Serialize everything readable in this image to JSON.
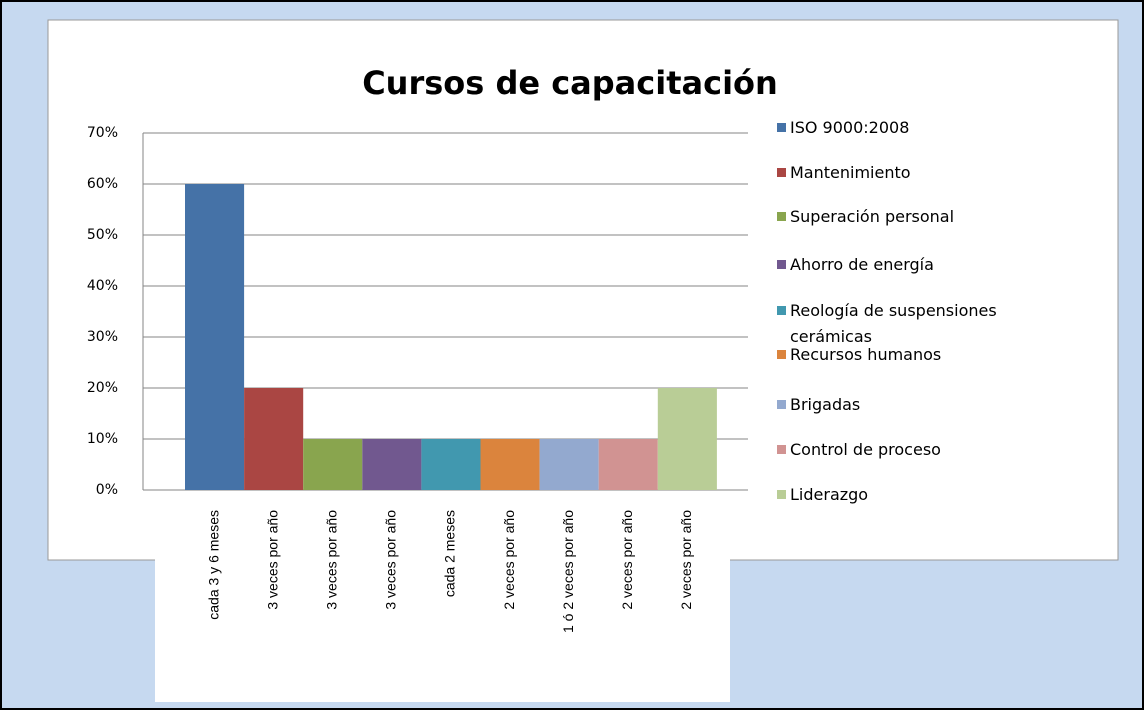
{
  "chart_data": {
    "type": "bar",
    "title": "Cursos de capacitación",
    "categories": [
      "cada 3 y 6 meses",
      "3 veces por año",
      "3 veces por año",
      "3 veces por año",
      "cada 2 meses",
      "2 veces por año",
      "1 ó 2 veces por año",
      "2 veces por año",
      "2 veces por año"
    ],
    "values": [
      60,
      20,
      10,
      10,
      10,
      10,
      10,
      10,
      20
    ],
    "colors": [
      "#4572a7",
      "#aa4643",
      "#89a54e",
      "#71588f",
      "#4198af",
      "#db843d",
      "#93a9cf",
      "#d19392",
      "#b9cd96"
    ],
    "legend": [
      "ISO 9000:2008",
      "Mantenimiento",
      "Superación personal",
      "Ahorro de energía",
      "Reología de suspensiones cerámicas",
      "Recursos humanos",
      "Brigadas",
      "Control de proceso",
      "Liderazgo"
    ],
    "ylim": [
      0,
      70
    ],
    "yticks": [
      {
        "value": 0,
        "label": "0%"
      },
      {
        "value": 10,
        "label": "10%"
      },
      {
        "value": 20,
        "label": "20%"
      },
      {
        "value": 30,
        "label": "30%"
      },
      {
        "value": 40,
        "label": "40%"
      },
      {
        "value": 50,
        "label": "50%"
      },
      {
        "value": 60,
        "label": "60%"
      },
      {
        "value": 70,
        "label": "70%"
      }
    ],
    "grid": true
  }
}
